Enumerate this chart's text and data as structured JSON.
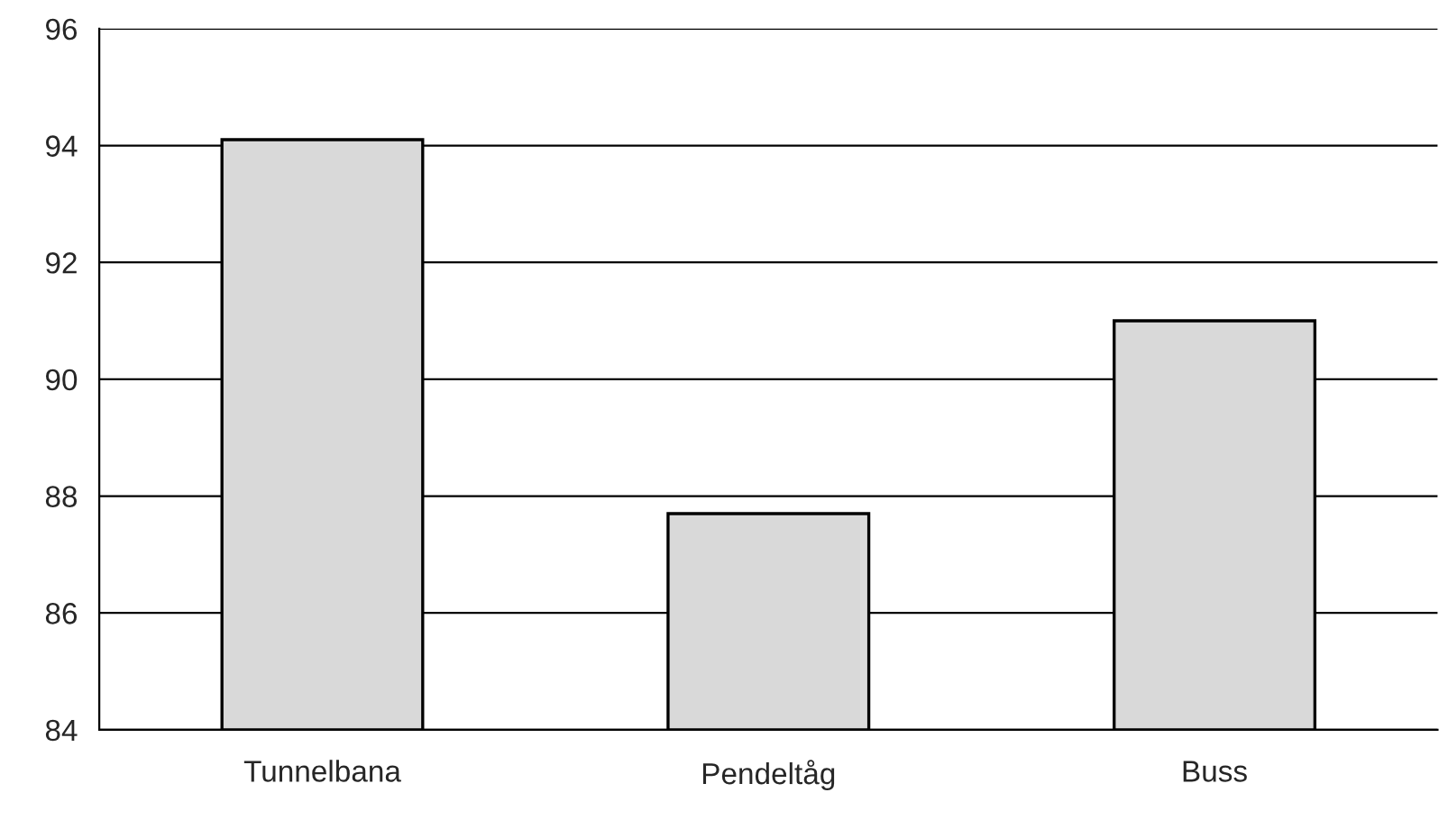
{
  "chart_data": {
    "type": "bar",
    "categories": [
      "Tunnelbana",
      "Pendeltåg",
      "Buss"
    ],
    "values": [
      94.1,
      87.7,
      91.0
    ],
    "color": "#d9d9d9",
    "ylim": [
      84,
      96
    ],
    "yticks": [
      84,
      86,
      88,
      90,
      92,
      94,
      96
    ],
    "grid": "y",
    "legend": false
  }
}
